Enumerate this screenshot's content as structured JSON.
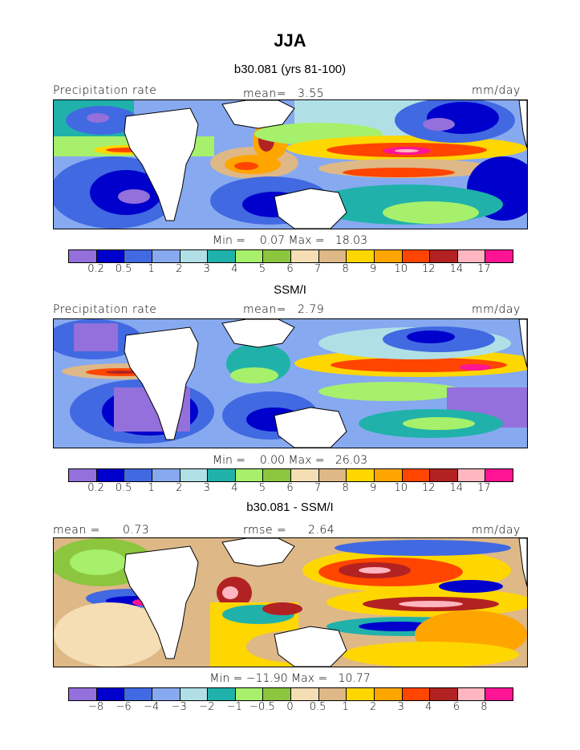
{
  "title": "JJA",
  "panels": [
    {
      "subtitle": "b30.081 (yrs 81-100)",
      "left_label": "Precipitation rate",
      "center_label": "mean=",
      "center_value": "3.55",
      "right_label": "mm/day",
      "minmax": "Min =    0.07 Max =   18.03"
    },
    {
      "subtitle": "SSM/I",
      "left_label": "Precipitation rate",
      "center_label": "mean=",
      "center_value": "2.79",
      "right_label": "mm/day",
      "minmax": "Min =    0.00 Max =   26.03"
    },
    {
      "subtitle": "b30.081 - SSM/I",
      "left_label": "mean =",
      "left_value": "0.73",
      "center_label": "rmse =",
      "center_value": "2.64",
      "right_label": "mm/day",
      "minmax": "Min = −11.90 Max =   10.77"
    }
  ],
  "colors": {
    "abs_scale": [
      "#9370db",
      "#0000cd",
      "#4169e1",
      "#87a9f0",
      "#b0e0e6",
      "#20b2aa",
      "#a6f06b",
      "#8cc63f",
      "#f5deb3",
      "#deb887",
      "#ffd700",
      "#ffa500",
      "#ff4500",
      "#b22222",
      "#ffb6c1",
      "#ff1493"
    ],
    "diff_scale": [
      "#9370db",
      "#0000cd",
      "#4169e1",
      "#87a9f0",
      "#b0e0e6",
      "#20b2aa",
      "#a6f06b",
      "#8cc63f",
      "#f5deb3",
      "#deb887",
      "#ffd700",
      "#ffa500",
      "#ff4500",
      "#b22222",
      "#ffb6c1",
      "#ff1493"
    ]
  },
  "chart_data": [
    {
      "type": "heatmap",
      "title": "b30.081 (yrs 81-100)",
      "variable": "Precipitation rate",
      "units": "mm/day",
      "mean": 3.55,
      "min": 0.07,
      "max": 18.03,
      "contour_levels": [
        "0.2",
        "0.5",
        "1",
        "2",
        "3",
        "4",
        "5",
        "6",
        "7",
        "8",
        "9",
        "10",
        "12",
        "14",
        "17"
      ]
    },
    {
      "type": "heatmap",
      "title": "SSM/I",
      "variable": "Precipitation rate",
      "units": "mm/day",
      "mean": 2.79,
      "min": 0.0,
      "max": 26.03,
      "contour_levels": [
        "0.2",
        "0.5",
        "1",
        "2",
        "3",
        "4",
        "5",
        "6",
        "7",
        "8",
        "9",
        "10",
        "12",
        "14",
        "17"
      ]
    },
    {
      "type": "heatmap",
      "title": "b30.081 - SSM/I",
      "units": "mm/day",
      "mean": 0.73,
      "rmse": 2.64,
      "min": -11.9,
      "max": 10.77,
      "contour_levels": [
        "−8",
        "−6",
        "−4",
        "−3",
        "−2",
        "−1",
        "−0.5",
        "0",
        "0.5",
        "1",
        "2",
        "3",
        "4",
        "6",
        "8"
      ]
    }
  ]
}
